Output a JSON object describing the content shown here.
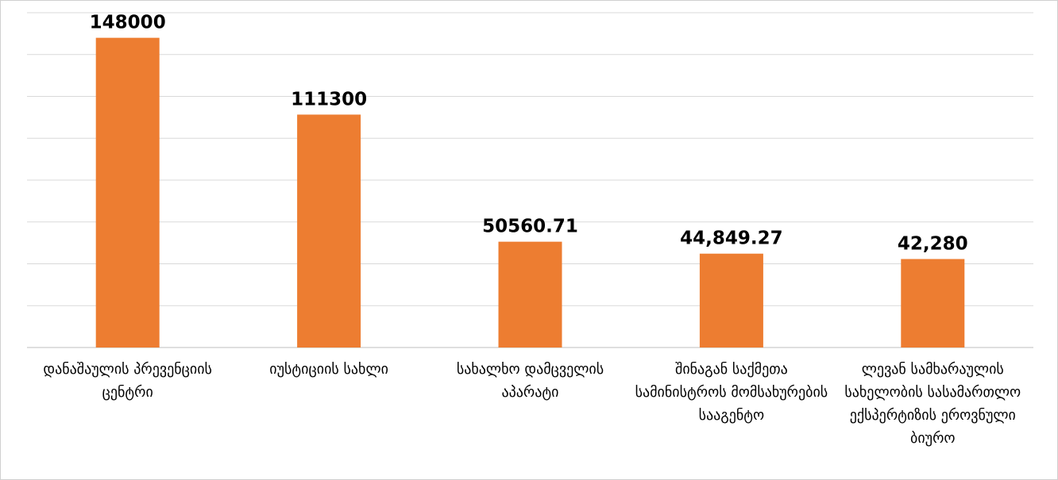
{
  "chart_data": {
    "type": "bar",
    "categories": [
      "დანაშაულის პრევენციის ცენტრი",
      "იუსტიციის სახლი",
      "სახალხო დამცველის აპარატი",
      "შინაგან საქმეთა სამინისტროს მომსახურების სააგენტო",
      "ლევან სამხარაულის სახელობის სასამართლო ექსპერტიზის ეროვნული ბიურო"
    ],
    "values": [
      148000,
      111300,
      50560.71,
      44849.27,
      42280
    ],
    "value_labels": [
      "148000",
      "111300",
      "50560.71",
      "44,849.27",
      "42,280"
    ],
    "color": "#ed7d31",
    "ylim": [
      0,
      160000
    ],
    "yticks": [
      0,
      20000,
      40000,
      60000,
      80000,
      100000,
      120000,
      140000,
      160000
    ],
    "grid": true
  }
}
